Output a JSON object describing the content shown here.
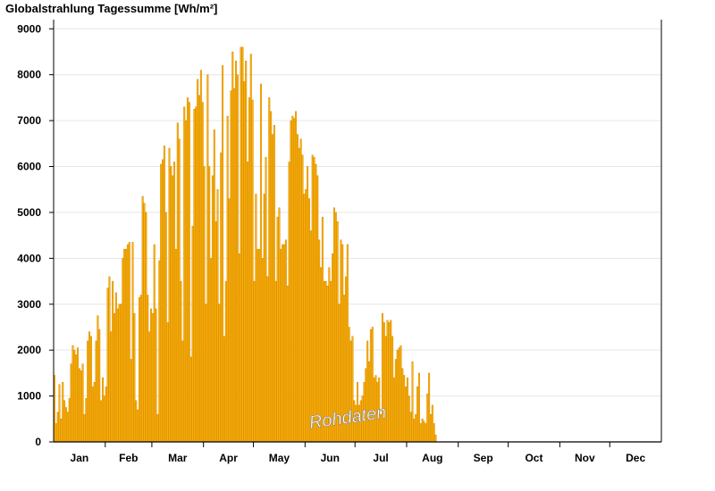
{
  "chart_data": {
    "type": "bar",
    "title": "Globalstrahlung Tagessumme [Wh/m²]",
    "xlabel": "",
    "ylabel": "",
    "ylim": [
      0,
      9200
    ],
    "yticks": [
      0,
      1000,
      2000,
      3000,
      4000,
      5000,
      6000,
      7000,
      8000,
      9000
    ],
    "months": [
      "Jan",
      "Feb",
      "Mar",
      "Apr",
      "May",
      "Jun",
      "Jul",
      "Aug",
      "Sep",
      "Oct",
      "Nov",
      "Dec"
    ],
    "annotation": "Rohdaten",
    "grid": true,
    "bar_color": "#ffb000",
    "bar_edge_color": "#c98000",
    "values": [
      1450,
      400,
      650,
      1250,
      500,
      1300,
      900,
      750,
      650,
      950,
      1700,
      2100,
      2000,
      1900,
      2050,
      1600,
      1550,
      1700,
      600,
      950,
      2200,
      2400,
      2300,
      1200,
      1300,
      2200,
      2750,
      2450,
      900,
      1400,
      1000,
      1200,
      3350,
      3600,
      2400,
      3500,
      2800,
      3250,
      2900,
      3000,
      3000,
      4000,
      4200,
      4200,
      4300,
      4350,
      1800,
      4350,
      2800,
      900,
      700,
      3150,
      3200,
      5350,
      5200,
      5000,
      3200,
      2400,
      2900,
      2800,
      4300,
      2900,
      600,
      3950,
      6050,
      6150,
      6450,
      5000,
      2600,
      6400,
      6000,
      5800,
      6100,
      4200,
      6950,
      6600,
      3500,
      2200,
      7300,
      7000,
      7500,
      7400,
      1850,
      4700,
      7250,
      7300,
      7900,
      7550,
      8100,
      7400,
      6000,
      3000,
      8000,
      6000,
      4000,
      5800,
      6800,
      4800,
      5500,
      3000,
      6300,
      8200,
      2300,
      3500,
      7100,
      5300,
      7650,
      8500,
      7700,
      8300,
      8000,
      4100,
      8600,
      8600,
      7850,
      8300,
      6100,
      7500,
      8450,
      7450,
      3500,
      5400,
      4200,
      4200,
      7800,
      4000,
      5400,
      6200,
      3600,
      7500,
      7200,
      6700,
      6900,
      3500,
      4900,
      5100,
      4200,
      4300,
      4300,
      4400,
      3400,
      6100,
      7000,
      7100,
      7050,
      7200,
      6700,
      6400,
      6600,
      6250,
      5400,
      5500,
      6000,
      5300,
      4600,
      6250,
      6200,
      6050,
      5800,
      4400,
      3800,
      4900,
      3500,
      3500,
      3400,
      3800,
      3500,
      4100,
      5100,
      5000,
      4800,
      3000,
      4400,
      4300,
      3200,
      3600,
      4300,
      2500,
      2200,
      2300,
      900,
      800,
      1300,
      800,
      900,
      1000,
      1300,
      1600,
      2200,
      1750,
      2450,
      2500,
      1400,
      1450,
      1300,
      1400,
      600,
      2800,
      2600,
      2300,
      2650,
      2600,
      2650,
      2300,
      1400,
      1800,
      2000,
      2050,
      2100,
      1600,
      1450,
      1200,
      1400,
      1000,
      650,
      1750,
      500,
      600,
      1200,
      1500,
      400,
      500,
      450,
      400,
      1050,
      1500,
      600,
      800,
      400,
      150
    ]
  }
}
